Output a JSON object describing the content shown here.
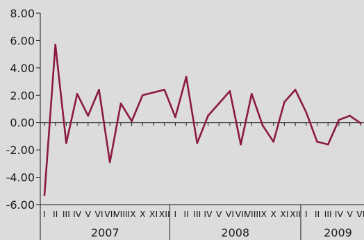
{
  "chart_data": {
    "type": "line",
    "title": "",
    "xlabel": "",
    "ylabel": "",
    "ylim": [
      -6,
      8
    ],
    "yticks": [
      "8.00",
      "6.00",
      "4.00",
      "2.00",
      "0.00",
      "-2.00",
      "-4.00",
      "-6.00"
    ],
    "grid": false,
    "line_color": "#8b1a3c",
    "months": [
      "I",
      "II",
      "III",
      "IV",
      "V",
      "VI",
      "VII",
      "VIII",
      "IX",
      "X",
      "XI",
      "XII",
      "I",
      "II",
      "III",
      "IV",
      "V",
      "VI",
      "VII",
      "VIII",
      "IX",
      "X",
      "XI",
      "XII",
      "I",
      "II",
      "III",
      "IV",
      "V",
      "VI"
    ],
    "years": [
      {
        "label": "2007",
        "span": 12
      },
      {
        "label": "2008",
        "span": 12
      },
      {
        "label": "2009",
        "span": 6
      }
    ],
    "series": [
      {
        "values": [
          -5.3,
          5.7,
          -1.5,
          2.1,
          0.5,
          2.4,
          -2.9,
          1.4,
          0.1,
          2.0,
          2.2,
          2.4,
          0.4,
          3.35,
          -1.5,
          0.5,
          1.4,
          2.3,
          -1.6,
          2.1,
          -0.2,
          -1.4,
          1.5,
          2.4,
          0.75,
          -1.4,
          -1.6,
          0.2,
          0.5,
          -0.05
        ]
      }
    ]
  }
}
